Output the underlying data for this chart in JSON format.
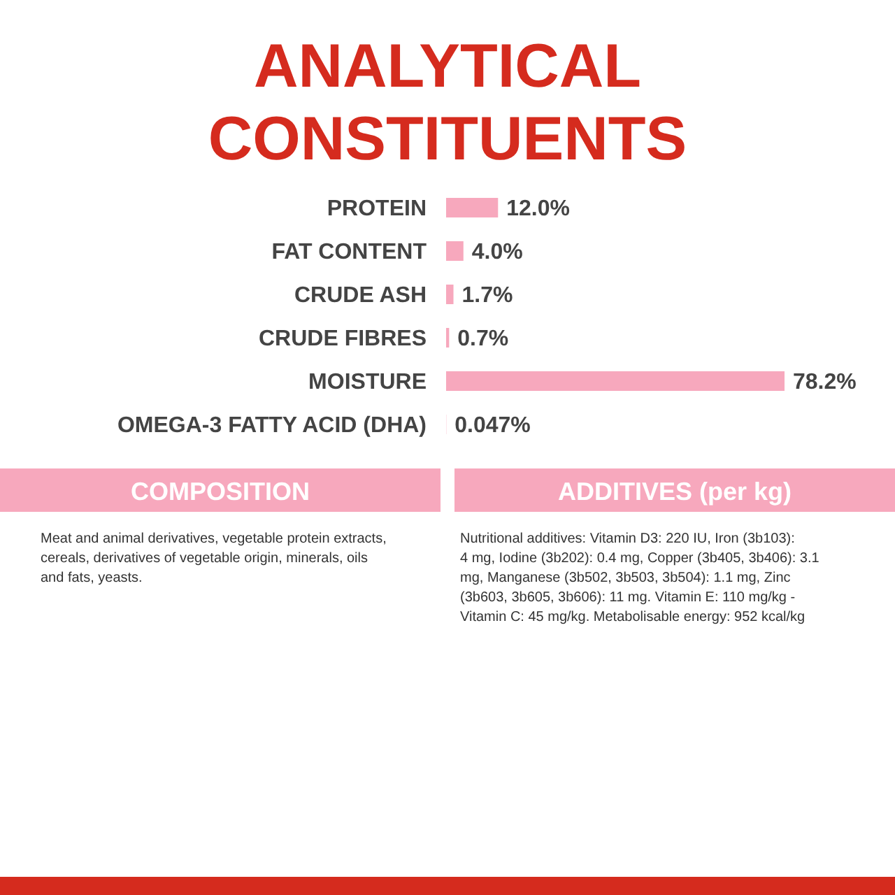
{
  "chart_data": {
    "type": "bar",
    "orientation": "horizontal",
    "title": "ANALYTICAL CONSTITUENTS",
    "categories": [
      "PROTEIN",
      "FAT CONTENT",
      "CRUDE ASH",
      "CRUDE FIBRES",
      "MOISTURE",
      "OMEGA-3 FATTY ACID (DHA)"
    ],
    "values": [
      12.0,
      4.0,
      1.7,
      0.7,
      78.2,
      0.047
    ],
    "value_labels": [
      "12.0%",
      "4.0%",
      "1.7%",
      "0.7%",
      "78.2%",
      "0.047%"
    ],
    "color": "#f7a8bd",
    "annotations": [
      "COMPOSITION",
      "Meat and animal derivatives, vegetable protein extracts, cereals, derivatives of vegetable origin, minerals, oils and fats, yeasts.",
      "ADDITIVES (per kg)",
      "Nutritional additives: Vitamin D3: 220 IU, Iron (3b103): 4 mg, Iodine (3b202): 0.4 mg, Copper (3b405, 3b406): 3.1 mg, Manganese (3b502, 3b503, 3b504): 1.1 mg, Zinc (3b603, 3b605, 3b606): 11 mg. Vitamin E: 110 mg/kg - Vitamin C: 45 mg/kg. Metabolisable energy: 952 kcal/kg"
    ]
  }
}
